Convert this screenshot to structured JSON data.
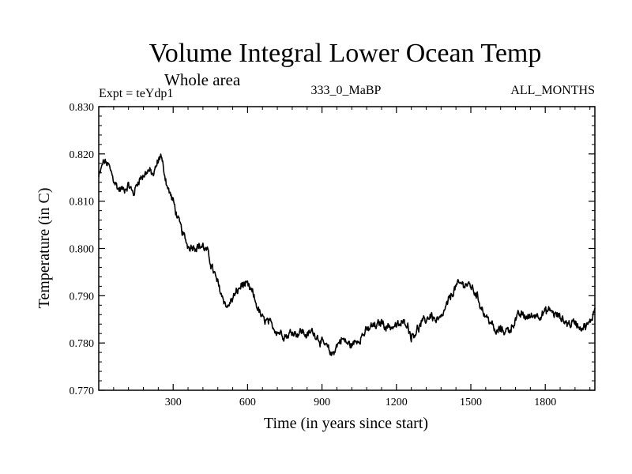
{
  "chart_data": {
    "type": "line",
    "title": "Volume Integral Lower Ocean Temp",
    "subtitle": "Whole area",
    "annotations": {
      "left": "Expt = teYdp1",
      "center": "333_0_MaBP",
      "right": "ALL_MONTHS"
    },
    "xlabel": "Time (in years since start)",
    "ylabel": "Temperature (in C)",
    "xlim": [
      0,
      2000
    ],
    "ylim": [
      0.77,
      0.83
    ],
    "x_ticks": [
      300,
      600,
      900,
      1200,
      1500,
      1800
    ],
    "x_tick_labels": [
      "300",
      "600",
      "900",
      "1200",
      "1500",
      "1800"
    ],
    "y_ticks": [
      0.77,
      0.78,
      0.79,
      0.8,
      0.81,
      0.82,
      0.83
    ],
    "y_tick_labels": [
      "0.770",
      "0.780",
      "0.790",
      "0.800",
      "0.810",
      "0.820",
      "0.830"
    ],
    "grid": false,
    "series": [
      {
        "name": "Volume Integral Lower Ocean Temp",
        "color": "#000000",
        "x": [
          0,
          20,
          40,
          60,
          80,
          100,
          120,
          140,
          160,
          180,
          200,
          220,
          240,
          250,
          260,
          280,
          300,
          320,
          340,
          360,
          380,
          400,
          420,
          440,
          460,
          480,
          500,
          520,
          540,
          560,
          580,
          600,
          620,
          640,
          660,
          680,
          700,
          720,
          740,
          760,
          780,
          800,
          820,
          840,
          860,
          880,
          900,
          920,
          940,
          960,
          980,
          1000,
          1020,
          1040,
          1060,
          1080,
          1100,
          1120,
          1140,
          1160,
          1180,
          1200,
          1220,
          1240,
          1260,
          1280,
          1300,
          1320,
          1340,
          1360,
          1380,
          1400,
          1420,
          1440,
          1460,
          1480,
          1500,
          1520,
          1540,
          1560,
          1580,
          1600,
          1620,
          1640,
          1660,
          1680,
          1700,
          1720,
          1740,
          1760,
          1780,
          1800,
          1820,
          1840,
          1860,
          1880,
          1900,
          1920,
          1940,
          1960,
          1980,
          2000
        ],
        "values": [
          0.815,
          0.8185,
          0.8175,
          0.8145,
          0.8125,
          0.8125,
          0.8135,
          0.8115,
          0.8145,
          0.8155,
          0.8165,
          0.8155,
          0.8185,
          0.82,
          0.817,
          0.8125,
          0.81,
          0.806,
          0.803,
          0.8005,
          0.8005,
          0.8005,
          0.8005,
          0.799,
          0.7955,
          0.7925,
          0.7895,
          0.7875,
          0.7895,
          0.791,
          0.7925,
          0.792,
          0.7905,
          0.7875,
          0.785,
          0.7845,
          0.7835,
          0.7825,
          0.782,
          0.7815,
          0.7825,
          0.782,
          0.7825,
          0.7815,
          0.7825,
          0.7815,
          0.78,
          0.779,
          0.7775,
          0.7795,
          0.781,
          0.78,
          0.7795,
          0.7805,
          0.7815,
          0.7825,
          0.7835,
          0.7835,
          0.7845,
          0.7835,
          0.7835,
          0.7835,
          0.784,
          0.7845,
          0.7815,
          0.7825,
          0.784,
          0.785,
          0.786,
          0.7845,
          0.785,
          0.7875,
          0.79,
          0.792,
          0.7925,
          0.7925,
          0.792,
          0.7905,
          0.788,
          0.7855,
          0.7845,
          0.782,
          0.783,
          0.7825,
          0.783,
          0.785,
          0.786,
          0.7855,
          0.7855,
          0.786,
          0.786,
          0.7865,
          0.787,
          0.786,
          0.7855,
          0.7845,
          0.784,
          0.7845,
          0.7835,
          0.7835,
          0.784,
          0.7875
        ]
      }
    ]
  }
}
